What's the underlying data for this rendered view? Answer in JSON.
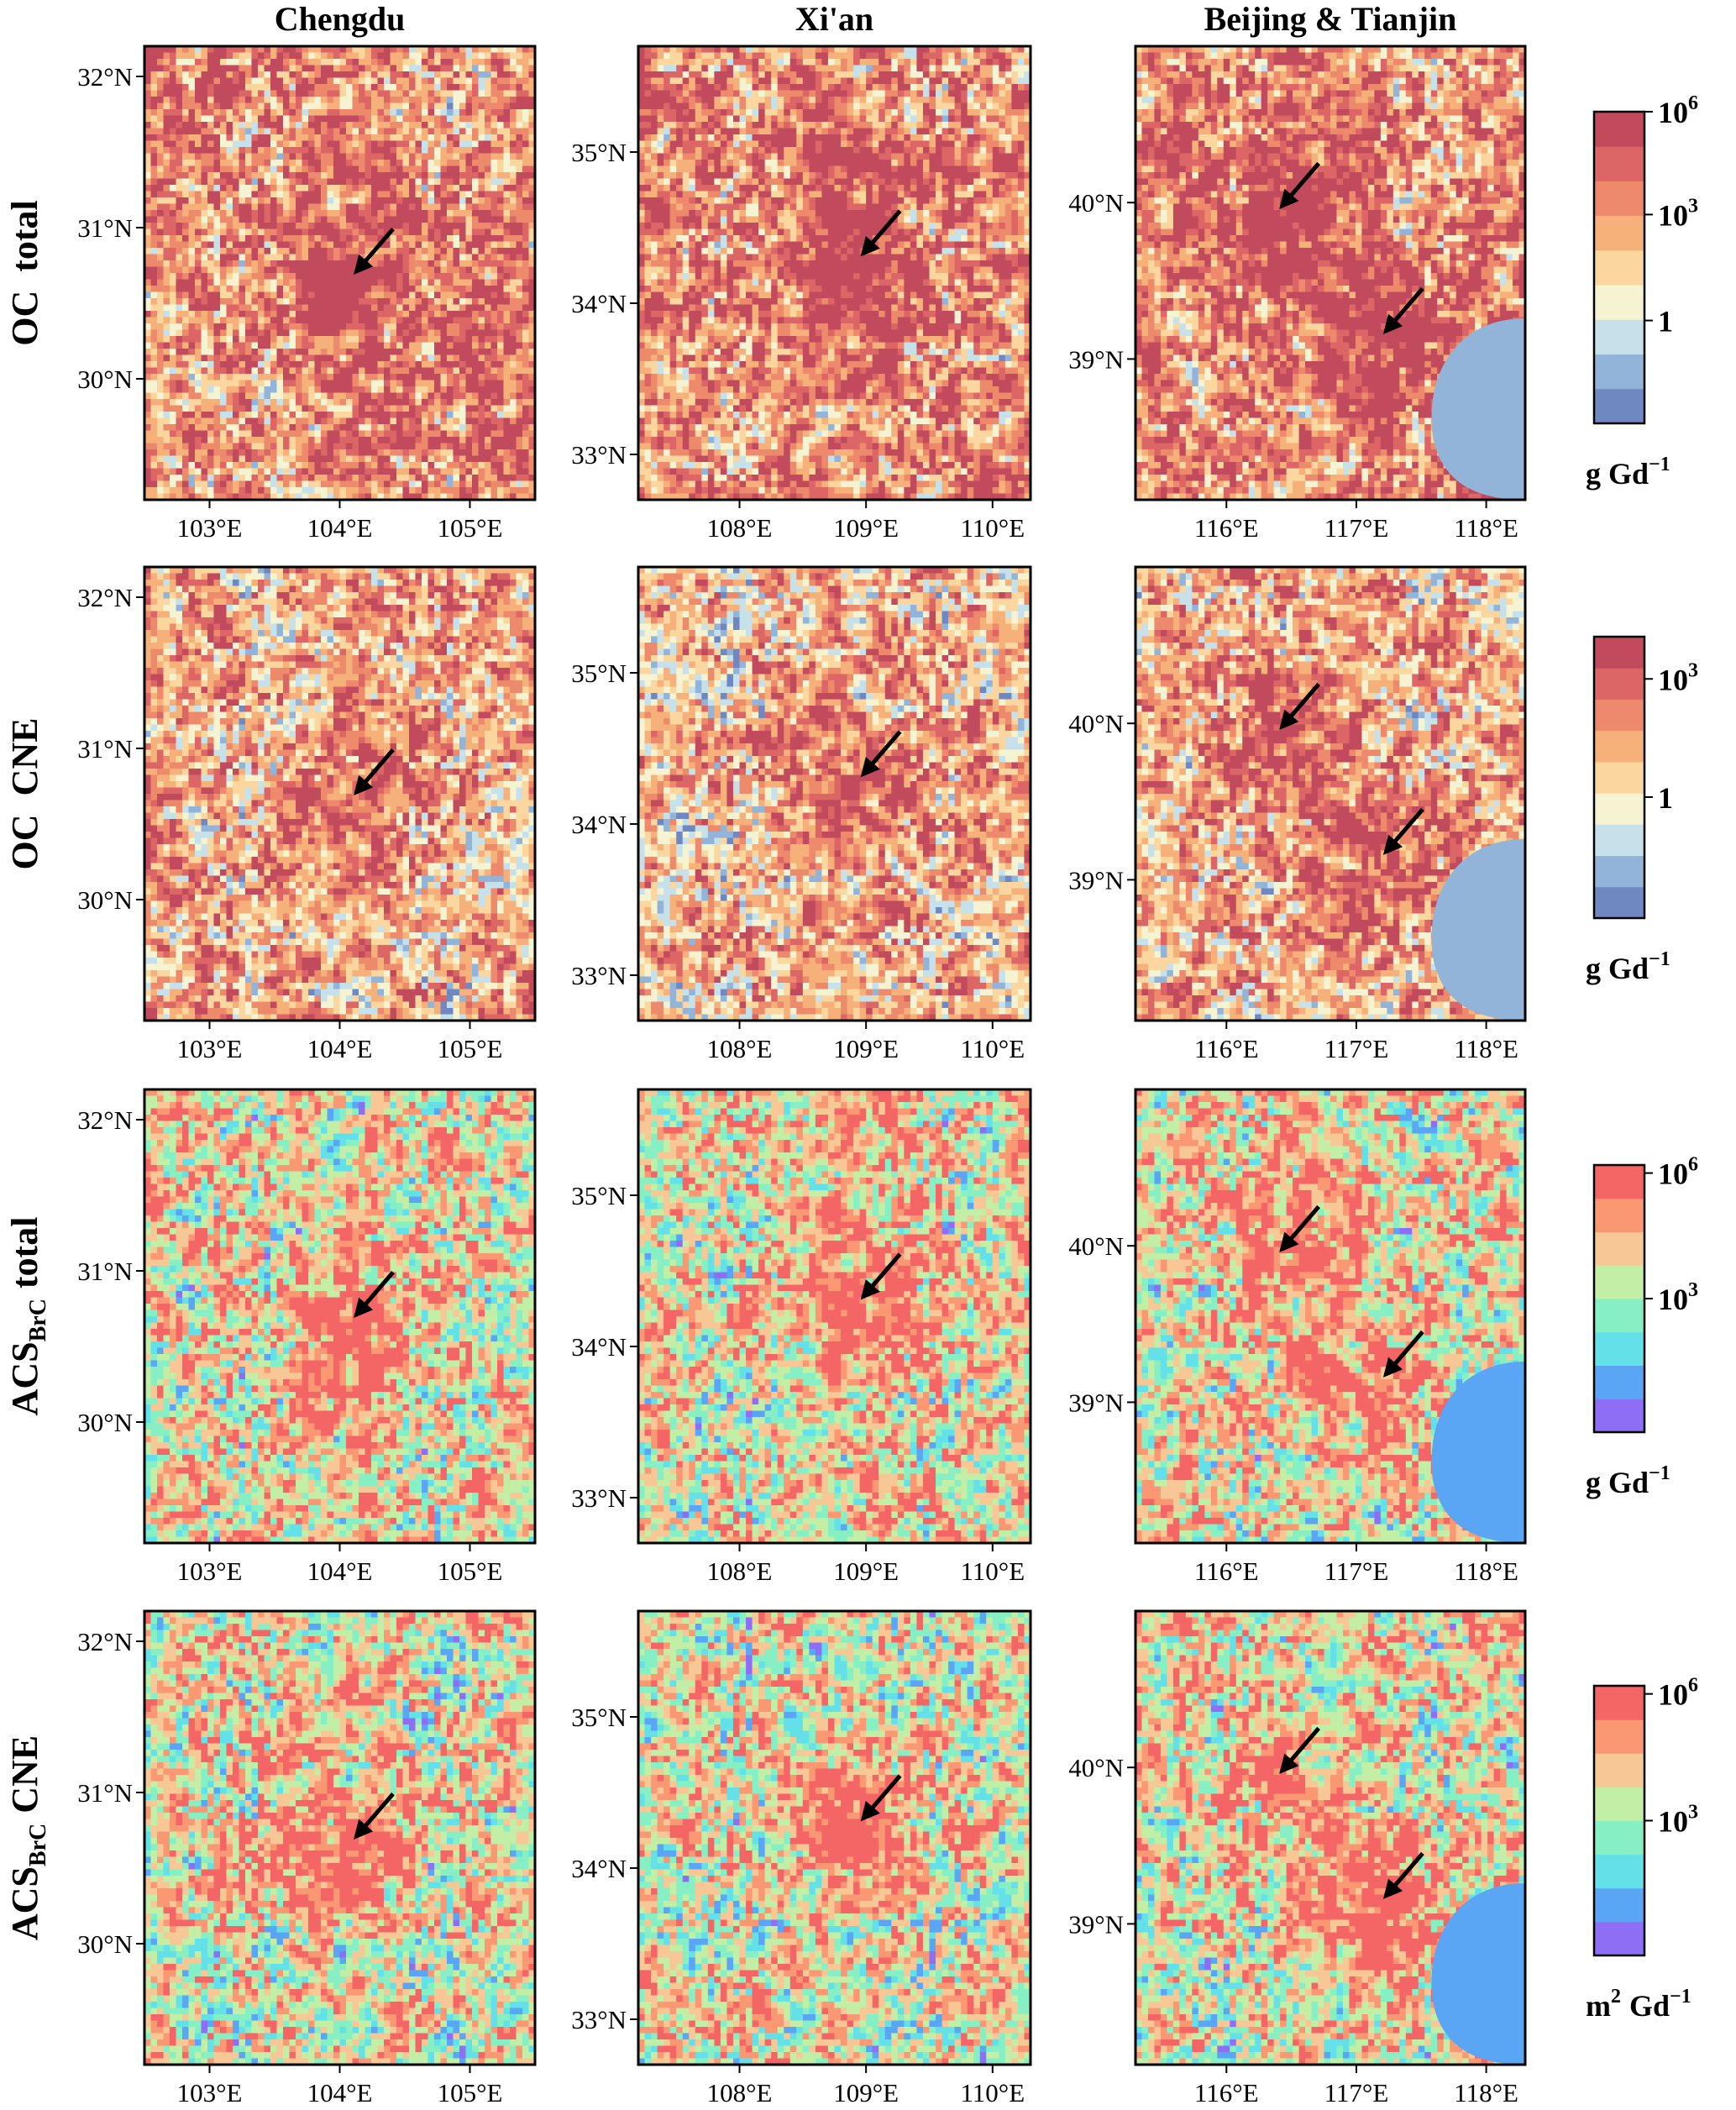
{
  "columns": [
    {
      "title": "Chengdu",
      "x_ticks": [
        "103°E",
        "104°E",
        "105°E"
      ],
      "y_ticks": [
        "32°N",
        "31°N",
        "30°N"
      ]
    },
    {
      "title": "Xi'an",
      "x_ticks": [
        "108°E",
        "109°E",
        "110°E"
      ],
      "y_ticks": [
        "35°N",
        "34°N",
        "33°N"
      ]
    },
    {
      "title": "Beijing & Tianjin",
      "x_ticks": [
        "116°E",
        "117°E",
        "118°E"
      ],
      "y_ticks": [
        "40°N",
        "39°N"
      ]
    }
  ],
  "rows": [
    {
      "label": "OC  total",
      "label_main": "OC",
      "label_sub": "",
      "label_tail": "total",
      "colorbar_ticks": [
        {
          "base": "10",
          "exp": "6"
        },
        {
          "base": "10",
          "exp": "3"
        },
        {
          "base": "1",
          "exp": ""
        }
      ],
      "unit_pre": "",
      "unit_pre_exp": "",
      "unit": "g Gd",
      "unit_exp": "−1",
      "colormap": [
        "#6f88c2",
        "#93b4d9",
        "#c6e1ea",
        "#f5f3d1",
        "#fbd79f",
        "#f6b07a",
        "#ee8a6c",
        "#dc6666",
        "#c14a5c"
      ]
    },
    {
      "label": "OC  CNE",
      "label_main": "OC",
      "label_sub": "",
      "label_tail": "CNE",
      "colorbar_ticks": [
        {
          "base": "10",
          "exp": "3"
        },
        {
          "base": "1",
          "exp": ""
        }
      ],
      "unit_pre": "",
      "unit_pre_exp": "",
      "unit": "g Gd",
      "unit_exp": "−1",
      "colormap": [
        "#6f88c2",
        "#93b4d9",
        "#c6e1ea",
        "#f5f3d1",
        "#fbd79f",
        "#f6b07a",
        "#ee8a6c",
        "#dc6666",
        "#c14a5c"
      ]
    },
    {
      "label": "ACSBrC total",
      "label_main": "ACS",
      "label_sub": "BrC",
      "label_tail": "total",
      "colorbar_ticks": [
        {
          "base": "10",
          "exp": "6"
        },
        {
          "base": "10",
          "exp": "3"
        }
      ],
      "unit_pre": "",
      "unit_pre_exp": "",
      "unit": "g Gd",
      "unit_exp": "−1",
      "colormap": [
        "#8d6ef5",
        "#5aa5f4",
        "#64e0e8",
        "#86f0c4",
        "#c2eea6",
        "#f7c895",
        "#fa9874",
        "#f46565"
      ]
    },
    {
      "label": "ACSBrC CNE",
      "label_main": "ACS",
      "label_sub": "BrC",
      "label_tail": "CNE",
      "colorbar_ticks": [
        {
          "base": "10",
          "exp": "6"
        },
        {
          "base": "10",
          "exp": "3"
        }
      ],
      "unit_pre": "m",
      "unit_pre_exp": "2",
      "unit": "Gd",
      "unit_exp": "−1",
      "colormap": [
        "#8d6ef5",
        "#5aa5f4",
        "#64e0e8",
        "#86f0c4",
        "#c2eea6",
        "#f7c895",
        "#fa9874",
        "#f46565"
      ]
    }
  ],
  "chart_data": {
    "type": "heatmap",
    "panels": [
      {
        "row": 0,
        "col": 0,
        "row_label": "OC total",
        "city": "Chengdu",
        "xlim": [
          102.5,
          105.5
        ],
        "ylim": [
          29.2,
          32.2
        ],
        "arrows": [
          [
            104.1,
            30.68
          ]
        ],
        "scale": "log",
        "colorbar_ticks": [
          "10^6",
          "10^3",
          "1"
        ]
      },
      {
        "row": 0,
        "col": 1,
        "row_label": "OC total",
        "city": "Xi'an",
        "xlim": [
          107.2,
          110.3
        ],
        "ylim": [
          32.7,
          35.7
        ],
        "arrows": [
          [
            108.95,
            34.3
          ]
        ],
        "scale": "log"
      },
      {
        "row": 0,
        "col": 2,
        "row_label": "OC total",
        "city": "Beijing & Tianjin",
        "xlim": [
          115.3,
          118.3
        ],
        "ylim": [
          38.1,
          41.0
        ],
        "arrows": [
          [
            116.4,
            39.95
          ],
          [
            117.2,
            39.15
          ]
        ],
        "scale": "log"
      },
      {
        "row": 1,
        "col": 0,
        "row_label": "OC CNE",
        "city": "Chengdu",
        "xlim": [
          102.5,
          105.5
        ],
        "ylim": [
          29.2,
          32.2
        ],
        "arrows": [
          [
            104.1,
            30.68
          ]
        ],
        "scale": "log",
        "colorbar_ticks": [
          "10^3",
          "1"
        ]
      },
      {
        "row": 1,
        "col": 1,
        "row_label": "OC CNE",
        "city": "Xi'an",
        "xlim": [
          107.2,
          110.3
        ],
        "ylim": [
          32.7,
          35.7
        ],
        "arrows": [
          [
            108.95,
            34.3
          ]
        ],
        "scale": "log"
      },
      {
        "row": 1,
        "col": 2,
        "row_label": "OC CNE",
        "city": "Beijing & Tianjin",
        "xlim": [
          115.3,
          118.3
        ],
        "ylim": [
          38.1,
          41.0
        ],
        "arrows": [
          [
            116.4,
            39.95
          ],
          [
            117.2,
            39.15
          ]
        ],
        "scale": "log"
      },
      {
        "row": 2,
        "col": 0,
        "row_label": "ACSBrC total",
        "city": "Chengdu",
        "xlim": [
          102.5,
          105.5
        ],
        "ylim": [
          29.2,
          32.2
        ],
        "arrows": [
          [
            104.1,
            30.68
          ]
        ],
        "scale": "log",
        "colorbar_ticks": [
          "10^6",
          "10^3"
        ]
      },
      {
        "row": 2,
        "col": 1,
        "row_label": "ACSBrC total",
        "city": "Xi'an",
        "xlim": [
          107.2,
          110.3
        ],
        "ylim": [
          32.7,
          35.7
        ],
        "arrows": [
          [
            108.95,
            34.3
          ]
        ],
        "scale": "log"
      },
      {
        "row": 2,
        "col": 2,
        "row_label": "ACSBrC total",
        "city": "Beijing & Tianjin",
        "xlim": [
          115.3,
          118.3
        ],
        "ylim": [
          38.1,
          41.0
        ],
        "arrows": [
          [
            116.4,
            39.95
          ],
          [
            117.2,
            39.15
          ]
        ],
        "scale": "log"
      },
      {
        "row": 3,
        "col": 0,
        "row_label": "ACSBrC CNE",
        "city": "Chengdu",
        "xlim": [
          102.5,
          105.5
        ],
        "ylim": [
          29.2,
          32.2
        ],
        "arrows": [
          [
            104.1,
            30.68
          ]
        ],
        "scale": "log",
        "colorbar_ticks": [
          "10^6",
          "10^3"
        ]
      },
      {
        "row": 3,
        "col": 1,
        "row_label": "ACSBrC CNE",
        "city": "Xi'an",
        "xlim": [
          107.2,
          110.3
        ],
        "ylim": [
          32.7,
          35.7
        ],
        "arrows": [
          [
            108.95,
            34.3
          ]
        ],
        "scale": "log"
      },
      {
        "row": 3,
        "col": 2,
        "row_label": "ACSBrC CNE",
        "city": "Beijing & Tianjin",
        "xlim": [
          115.3,
          118.3
        ],
        "ylim": [
          38.1,
          41.0
        ],
        "arrows": [
          [
            116.4,
            39.95
          ],
          [
            117.2,
            39.15
          ]
        ],
        "scale": "log"
      }
    ]
  }
}
